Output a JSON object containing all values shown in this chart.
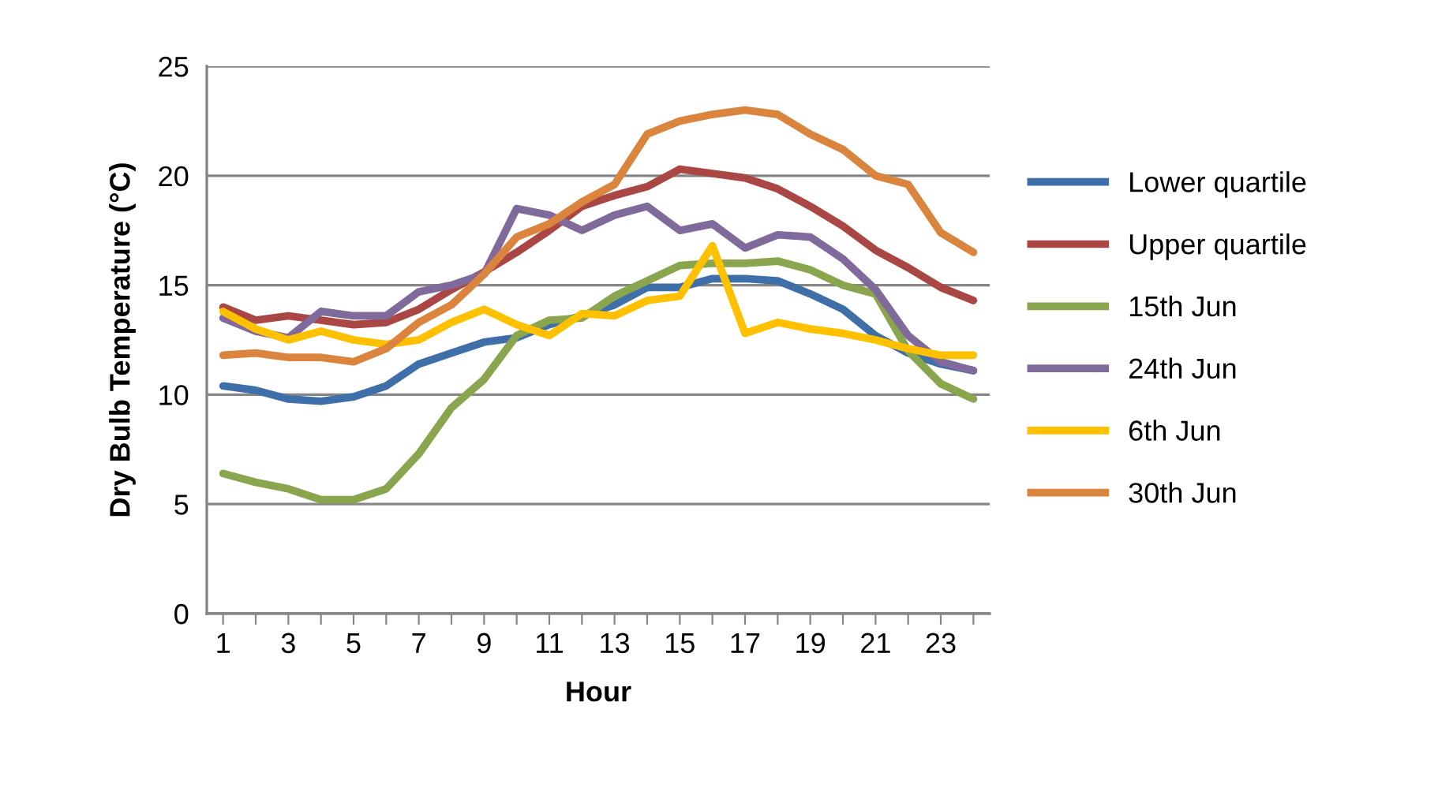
{
  "chart_data": {
    "type": "line",
    "xlabel": "Hour",
    "ylabel": "Dry Bulb Temperature (°C)",
    "categories": [
      "1",
      null,
      "3",
      null,
      "5",
      null,
      "7",
      null,
      "9",
      null,
      "11",
      null,
      "13",
      null,
      "15",
      null,
      "17",
      null,
      "19",
      null,
      "21",
      null,
      "23",
      null
    ],
    "ylim": [
      0,
      25
    ],
    "yticks": [
      0,
      5,
      10,
      15,
      20,
      25
    ],
    "grid": "y",
    "legend": "right",
    "marker": "none",
    "line_style": "solid",
    "series": [
      {
        "name": "Lower quartile",
        "color": "#3f6fa9",
        "values": [
          10.4,
          10.2,
          9.8,
          9.7,
          9.9,
          10.4,
          11.4,
          11.9,
          12.4,
          12.6,
          13.2,
          13.6,
          14.1,
          14.9,
          14.9,
          15.3,
          15.3,
          15.2,
          14.6,
          13.9,
          12.7,
          11.9,
          11.4,
          11.1
        ]
      },
      {
        "name": "Upper quartile",
        "color": "#aa4643",
        "values": [
          14.0,
          13.4,
          13.6,
          13.4,
          13.2,
          13.3,
          13.9,
          14.8,
          15.6,
          16.5,
          17.5,
          18.6,
          19.1,
          19.5,
          20.3,
          20.1,
          19.9,
          19.4,
          18.6,
          17.7,
          16.6,
          15.8,
          14.9,
          14.3
        ]
      },
      {
        "name": "15th Jun",
        "color": "#89a54e",
        "values": [
          6.4,
          6.0,
          5.7,
          5.2,
          5.2,
          5.7,
          7.3,
          9.4,
          10.7,
          12.7,
          13.4,
          13.5,
          14.5,
          15.2,
          15.9,
          16.0,
          16.0,
          16.1,
          15.7,
          15.0,
          14.6,
          12.0,
          10.5,
          9.8
        ]
      },
      {
        "name": "24th Jun",
        "color": "#80699b",
        "values": [
          13.5,
          12.9,
          12.6,
          13.8,
          13.6,
          13.6,
          14.7,
          15.0,
          15.5,
          18.5,
          18.2,
          17.5,
          18.2,
          18.6,
          17.5,
          17.8,
          16.7,
          17.3,
          17.2,
          16.2,
          14.8,
          12.7,
          11.5,
          11.1
        ]
      },
      {
        "name": "6th Jun",
        "color": "#ffc000",
        "values": [
          13.8,
          13.0,
          12.5,
          12.9,
          12.5,
          12.3,
          12.5,
          13.3,
          13.9,
          13.2,
          12.7,
          13.7,
          13.6,
          14.3,
          14.5,
          16.8,
          12.8,
          13.3,
          13.0,
          12.8,
          12.5,
          12.1,
          11.8,
          11.8
        ]
      },
      {
        "name": "30th Jun",
        "color": "#db843d",
        "values": [
          11.8,
          11.9,
          11.7,
          11.7,
          11.5,
          12.1,
          13.3,
          14.1,
          15.5,
          17.2,
          17.8,
          18.8,
          19.6,
          21.9,
          22.5,
          22.8,
          23.0,
          22.8,
          21.9,
          21.2,
          20.0,
          19.6,
          17.4,
          16.5
        ]
      }
    ]
  }
}
